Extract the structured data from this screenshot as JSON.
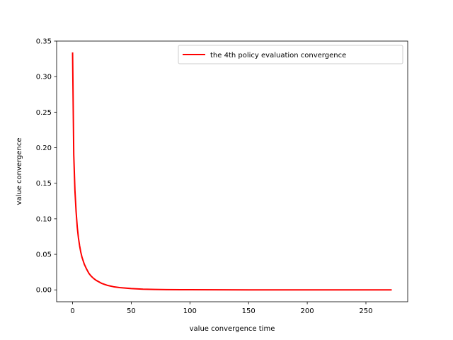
{
  "chart_data": {
    "type": "line",
    "title": "",
    "xlabel": "value convergence time",
    "ylabel": "value convergence",
    "xlim": [
      -13.6,
      285.6
    ],
    "ylim": [
      -0.0167,
      0.35
    ],
    "xticks": [
      0,
      50,
      100,
      150,
      200,
      250
    ],
    "yticks": [
      0.0,
      0.05,
      0.1,
      0.15,
      0.2,
      0.25,
      0.3,
      0.35
    ],
    "xtick_labels": [
      "0",
      "50",
      "100",
      "150",
      "200",
      "250"
    ],
    "ytick_labels": [
      "0.00",
      "0.05",
      "0.10",
      "0.15",
      "0.20",
      "0.25",
      "0.30",
      "0.35"
    ],
    "grid": false,
    "legend_position": "top-right",
    "series": [
      {
        "name": "the 4th policy evaluation convergence",
        "color": "#ff0000",
        "x": [
          0,
          1,
          2,
          3,
          4,
          5,
          6,
          7,
          8,
          10,
          12,
          14,
          16,
          18,
          20,
          25,
          30,
          35,
          40,
          50,
          60,
          70,
          80,
          100,
          125,
          150,
          175,
          200,
          225,
          250,
          272
        ],
        "y": [
          0.334,
          0.19,
          0.14,
          0.11,
          0.088,
          0.073,
          0.062,
          0.053,
          0.046,
          0.036,
          0.029,
          0.023,
          0.019,
          0.016,
          0.0135,
          0.009,
          0.0062,
          0.0044,
          0.0032,
          0.0018,
          0.001,
          0.0006,
          0.0004,
          0.0002,
          0.0001,
          5e-05,
          3e-05,
          2e-05,
          1e-05,
          1e-05,
          1e-05
        ]
      }
    ]
  }
}
